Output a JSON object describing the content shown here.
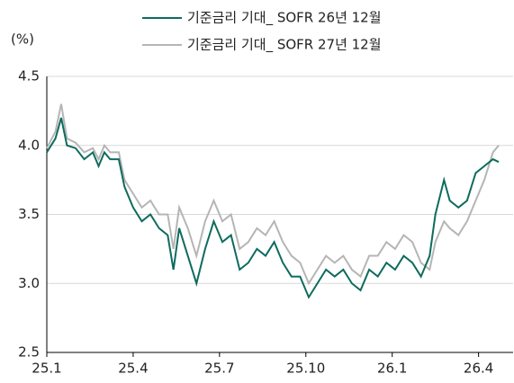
{
  "chart_data": {
    "type": "line",
    "y_label": "(%)",
    "xlim": [
      0,
      16.2
    ],
    "xticks": [
      {
        "value": 0,
        "label": "25.1"
      },
      {
        "value": 3,
        "label": "25.4"
      },
      {
        "value": 6,
        "label": "25.7"
      },
      {
        "value": 9,
        "label": "25.10"
      },
      {
        "value": 12,
        "label": "26.1"
      },
      {
        "value": 15,
        "label": "26.4"
      }
    ],
    "ylim": [
      2.5,
      4.5
    ],
    "yticks": [
      {
        "value": 2.5,
        "label": "2.5"
      },
      {
        "value": 3,
        "label": "3.0"
      },
      {
        "value": 3.5,
        "label": "3.5"
      },
      {
        "value": 4,
        "label": "4.0"
      },
      {
        "value": 4.5,
        "label": "4.5"
      }
    ],
    "grid": true,
    "x": [
      0,
      0.3,
      0.5,
      0.7,
      1.0,
      1.3,
      1.6,
      1.8,
      2.0,
      2.2,
      2.5,
      2.7,
      3.0,
      3.3,
      3.6,
      3.9,
      4.2,
      4.4,
      4.6,
      4.9,
      5.2,
      5.5,
      5.8,
      6.1,
      6.4,
      6.7,
      7.0,
      7.3,
      7.6,
      7.9,
      8.2,
      8.5,
      8.8,
      9.1,
      9.4,
      9.7,
      10.0,
      10.3,
      10.6,
      10.9,
      11.2,
      11.5,
      11.8,
      12.1,
      12.4,
      12.7,
      13.0,
      13.3,
      13.5,
      13.8,
      14.0,
      14.3,
      14.6,
      14.9,
      15.2,
      15.5,
      15.7
    ],
    "series": [
      {
        "name": "기준금리 기대_ SOFR 26년 12월",
        "color": "#0e6b5e",
        "values": [
          3.95,
          4.05,
          4.2,
          4.0,
          3.98,
          3.9,
          3.95,
          3.85,
          3.95,
          3.9,
          3.9,
          3.7,
          3.55,
          3.45,
          3.5,
          3.4,
          3.35,
          3.1,
          3.4,
          3.2,
          3.0,
          3.25,
          3.45,
          3.3,
          3.35,
          3.1,
          3.15,
          3.25,
          3.2,
          3.3,
          3.15,
          3.05,
          3.05,
          2.9,
          3.0,
          3.1,
          3.05,
          3.1,
          3.0,
          2.95,
          3.1,
          3.05,
          3.15,
          3.1,
          3.2,
          3.15,
          3.05,
          3.2,
          3.5,
          3.75,
          3.6,
          3.55,
          3.6,
          3.8,
          3.85,
          3.9,
          3.88
        ]
      },
      {
        "name": "기준금리 기대_ SOFR 27년 12월",
        "color": "#b5b5b5",
        "values": [
          3.98,
          4.1,
          4.3,
          4.05,
          4.02,
          3.95,
          3.98,
          3.9,
          4.0,
          3.95,
          3.95,
          3.75,
          3.65,
          3.55,
          3.6,
          3.5,
          3.5,
          3.25,
          3.55,
          3.4,
          3.2,
          3.45,
          3.6,
          3.45,
          3.5,
          3.25,
          3.3,
          3.4,
          3.35,
          3.45,
          3.3,
          3.2,
          3.15,
          3.0,
          3.1,
          3.2,
          3.15,
          3.2,
          3.1,
          3.05,
          3.2,
          3.2,
          3.3,
          3.25,
          3.35,
          3.3,
          3.15,
          3.1,
          3.3,
          3.45,
          3.4,
          3.35,
          3.45,
          3.6,
          3.75,
          3.95,
          4.0
        ]
      }
    ]
  }
}
